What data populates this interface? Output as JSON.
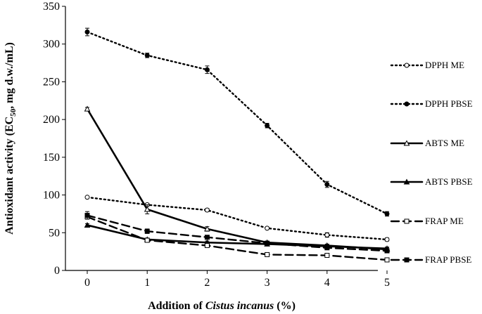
{
  "chart_data": {
    "type": "line",
    "title": "",
    "xlabel": "Addition of Cistus incanus (%)",
    "xlabel_parts": {
      "prefix": "Addition of ",
      "italic": "Cistus incanus",
      "suffix": " (%)"
    },
    "ylabel": "Antioxidant activity (EC50, mg d.w./mL)",
    "ylabel_parts": {
      "prefix": "Antioxidant activity  (EC",
      "sub": "50",
      "suffix": ", mg d.w./mL)"
    },
    "x": [
      0,
      1,
      2,
      3,
      4,
      5
    ],
    "x_tick_labels": [
      "0",
      "1",
      "2",
      "3",
      "4",
      "5"
    ],
    "y_tick_labels": [
      "0",
      "50",
      "100",
      "150",
      "200",
      "250",
      "300",
      "350"
    ],
    "ylim": [
      0,
      350
    ],
    "grid": false,
    "legend_position": "right",
    "series": [
      {
        "name": "DPPH ME",
        "values": [
          97,
          87,
          80,
          56,
          47,
          41
        ],
        "errors": [
          1,
          2,
          2,
          1,
          3,
          2
        ],
        "line_style": "dotted",
        "marker": "open-circle"
      },
      {
        "name": "DPPH PBSE",
        "values": [
          316,
          285,
          266,
          192,
          114,
          75
        ],
        "errors": [
          5,
          3,
          5,
          3,
          4,
          3
        ],
        "line_style": "dotted",
        "marker": "filled-circle"
      },
      {
        "name": "ABTS ME",
        "values": [
          214,
          81,
          55,
          37,
          33,
          28
        ],
        "errors": [
          2,
          6,
          3,
          2,
          2,
          2
        ],
        "line_style": "solid",
        "marker": "open-triangle"
      },
      {
        "name": "ABTS PBSE",
        "values": [
          60,
          41,
          37,
          35,
          32,
          29
        ],
        "errors": [
          2,
          2,
          2,
          2,
          2,
          2
        ],
        "line_style": "solid",
        "marker": "filled-triangle"
      },
      {
        "name": "FRAP ME",
        "values": [
          71,
          40,
          33,
          21,
          20,
          14
        ],
        "errors": [
          2,
          2,
          2,
          1,
          1,
          1
        ],
        "line_style": "dashed",
        "marker": "open-square"
      },
      {
        "name": "FRAP PBSE",
        "values": [
          73,
          52,
          44,
          36,
          30,
          26
        ],
        "errors": [
          5,
          3,
          2,
          2,
          2,
          2
        ],
        "line_style": "dashed",
        "marker": "filled-square"
      }
    ],
    "colors": {
      "line": "#000000",
      "background": "#ffffff"
    }
  }
}
